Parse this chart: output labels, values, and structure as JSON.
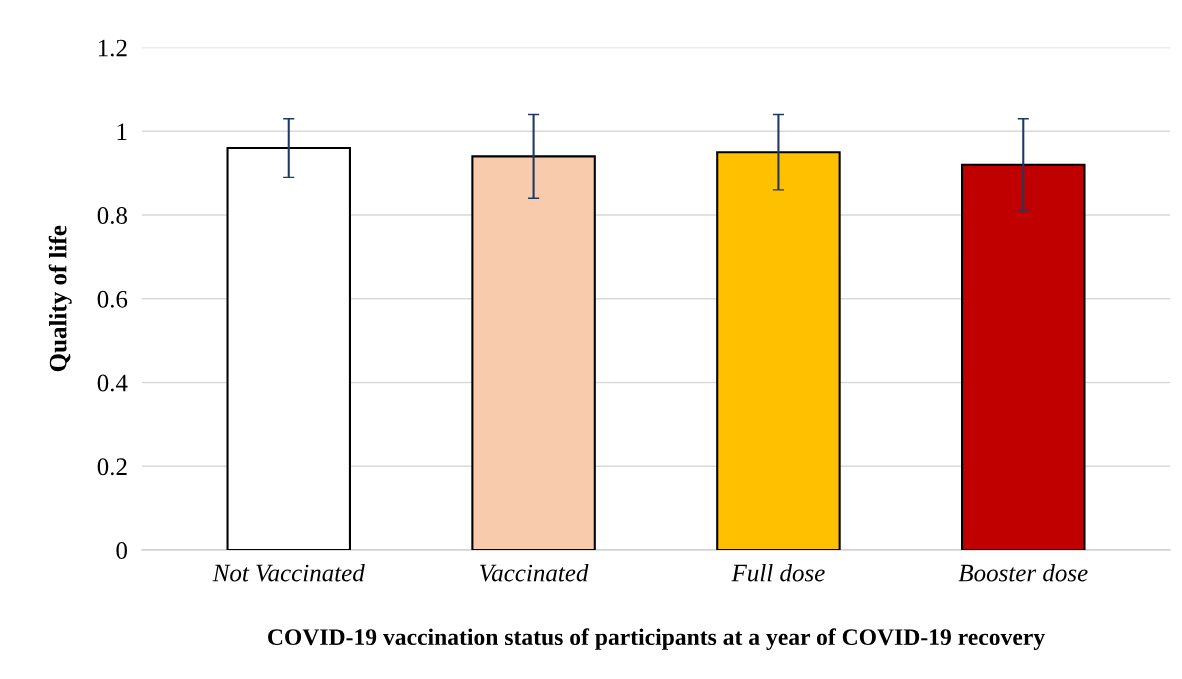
{
  "chart_data": {
    "type": "bar",
    "xlabel": "COVID-19 vaccination status of participants at a year of COVID-19 recovery",
    "ylabel": "Quality of life",
    "categories": [
      "Not Vaccinated",
      "Vaccinated",
      "Full dose",
      "Booster dose"
    ],
    "values": [
      0.96,
      0.94,
      0.95,
      0.92
    ],
    "errors": [
      0.07,
      0.1,
      0.09,
      0.11
    ],
    "colors": [
      "#ffffff",
      "#f8cbad",
      "#ffc000",
      "#c00000"
    ],
    "ylim": [
      0,
      1.2
    ],
    "yticks": [
      0,
      0.2,
      0.4,
      0.6,
      0.8,
      1,
      1.2
    ],
    "grid": "y",
    "legend": false
  }
}
